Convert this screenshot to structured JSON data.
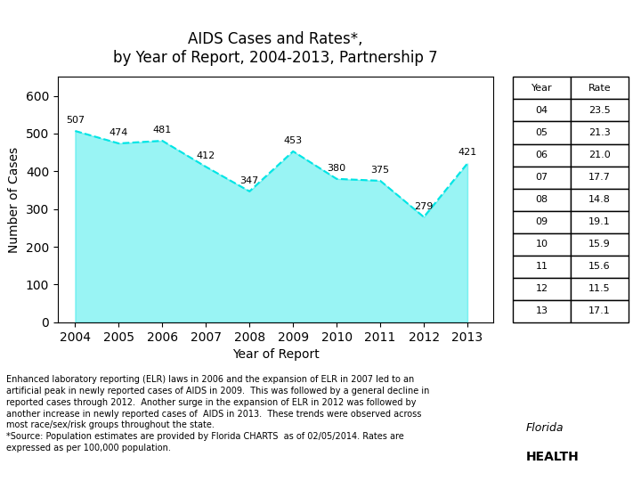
{
  "chart_data": {
    "type": "area",
    "title": "AIDS Cases and Rates*,\nby Year of Report, 2004-2013, Partnership 7",
    "x_label": "Year of Report",
    "y_label": "Number of Cases",
    "x": [
      2004,
      2005,
      2006,
      2007,
      2008,
      2009,
      2010,
      2011,
      2012,
      2013
    ],
    "values": [
      507,
      474,
      481,
      412,
      347,
      453,
      380,
      375,
      279,
      421
    ],
    "color": "#00E5E5",
    "line_style": "dashed",
    "data_labels": true,
    "grid": false,
    "xlim": [
      2003.6,
      2013.6
    ],
    "xticks": [
      2004,
      2005,
      2006,
      2007,
      2008,
      2009,
      2010,
      2011,
      2012,
      2013
    ],
    "ylim": [
      0,
      650
    ],
    "yticks": [
      0,
      100,
      200,
      300,
      400,
      500,
      600
    ],
    "table": {
      "columns": [
        "Year",
        "Rate"
      ],
      "rows": [
        [
          "04",
          23.5
        ],
        [
          "05",
          21.3
        ],
        [
          "06",
          21.0
        ],
        [
          "07",
          17.7
        ],
        [
          "08",
          14.8
        ],
        [
          "09",
          19.1
        ],
        [
          "10",
          15.9
        ],
        [
          "11",
          15.6
        ],
        [
          "12",
          11.5
        ],
        [
          "13",
          17.1
        ]
      ]
    },
    "footnote": "Enhanced laboratory reporting (ELR) laws in 2006 and the expansion of ELR in 2007 led to an\nartificial peak in newly reported cases of AIDS in 2009.  This was followed by a general decline in\nreported cases through 2012.  Another surge in the expansion of ELR in 2012 was followed by\nanother increase in newly reported cases of  AIDS in 2013.  These trends were observed across\nmost race/sex/risk groups throughout the state.\n*Source: Population estimates are provided by Florida CHARTS  as of 02/05/2014. Rates are\nexpressed as per 100,000 population.",
    "annotations": [
      "Florida",
      "HEALTH"
    ]
  }
}
